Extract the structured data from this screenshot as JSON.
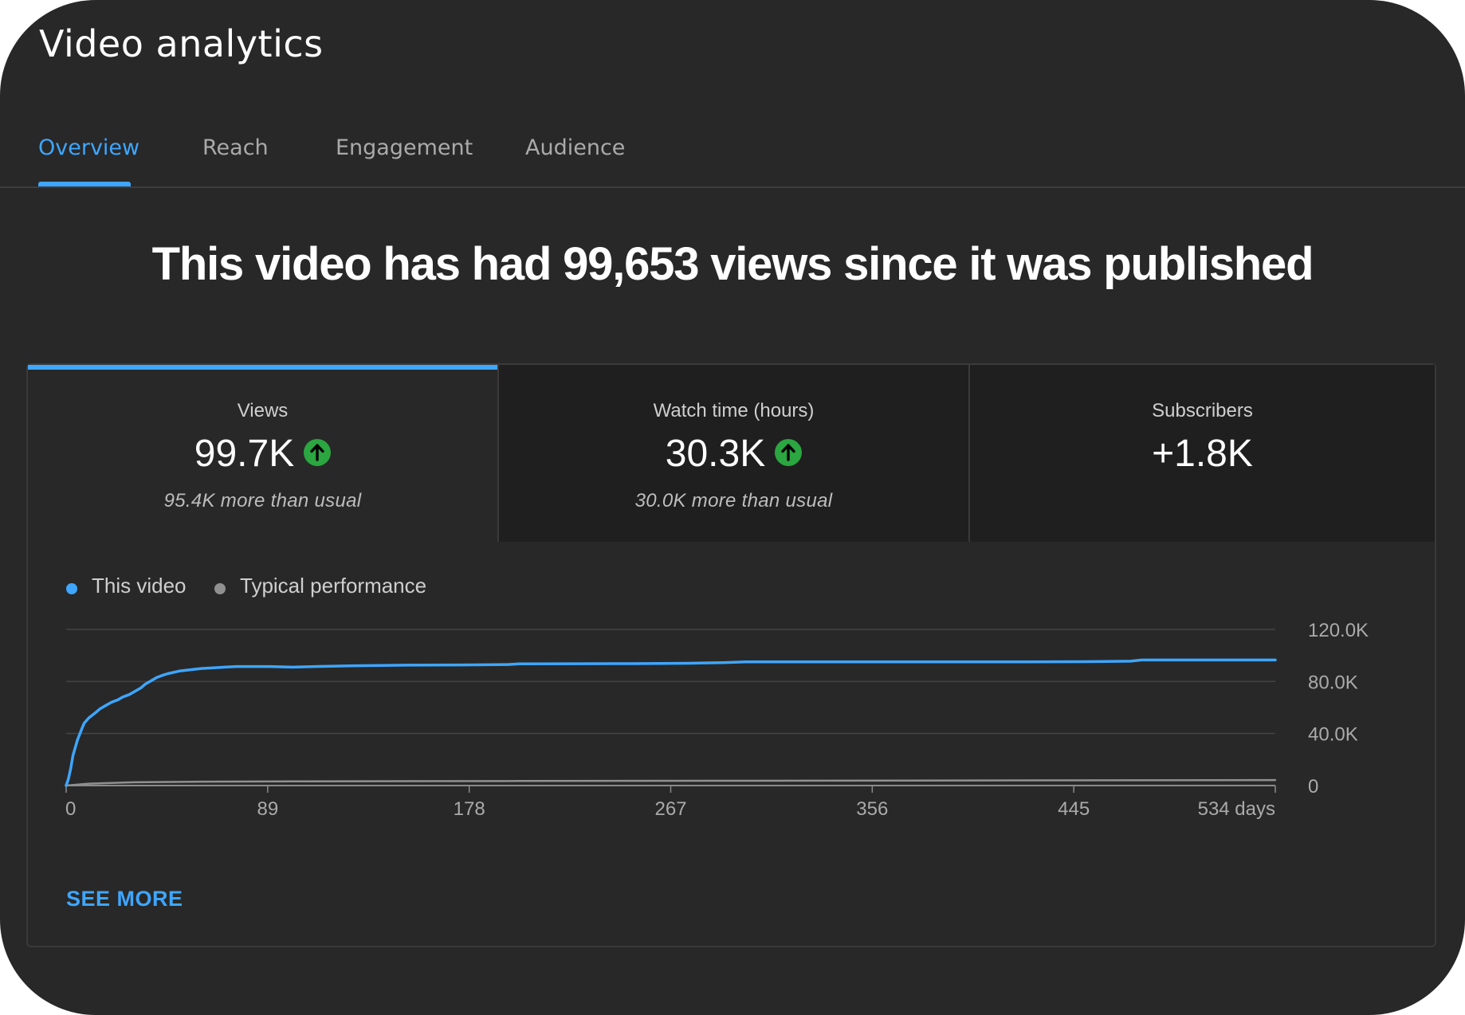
{
  "app": {
    "title": "Video analytics"
  },
  "tabs": [
    {
      "label": "Overview",
      "active": true
    },
    {
      "label": "Reach",
      "active": false
    },
    {
      "label": "Engagement",
      "active": false
    },
    {
      "label": "Audience",
      "active": false
    }
  ],
  "headline": "This video has had 99,653 views since it was published",
  "metrics": [
    {
      "label": "Views",
      "value": "99.7K",
      "trend": "up-arrow-icon",
      "subtext": "95.4K more than usual",
      "selected": true
    },
    {
      "label": "Watch time (hours)",
      "value": "30.3K",
      "trend": "up-arrow-icon",
      "subtext": "30.0K more than usual",
      "selected": false
    },
    {
      "label": "Subscribers",
      "value": "+1.8K",
      "trend": null,
      "subtext": "",
      "selected": false
    }
  ],
  "legend": [
    {
      "label": "This video",
      "color": "#3ea6ff"
    },
    {
      "label": "Typical performance",
      "color": "#909090"
    }
  ],
  "see_more": "SEE MORE",
  "colors": {
    "accent": "#3ea6ff",
    "positive": "#2ba640",
    "background": "#282828"
  },
  "chart_data": {
    "type": "line",
    "xlabel": "",
    "ylabel": "",
    "xlim": [
      0,
      534
    ],
    "ylim": [
      0,
      120000
    ],
    "x_ticks": [
      0,
      89,
      178,
      267,
      356,
      445,
      534
    ],
    "x_tick_labels": [
      "0",
      "89",
      "178",
      "267",
      "356",
      "445",
      "534 days"
    ],
    "y_ticks": [
      0,
      40000,
      80000,
      120000
    ],
    "y_tick_labels": [
      "0",
      "40.0K",
      "80.0K",
      "120.0K"
    ],
    "grid": true,
    "legend_position": "top-left",
    "series": [
      {
        "name": "This video",
        "color": "#3ea6ff",
        "x": [
          0,
          1,
          2,
          3,
          5,
          7,
          8,
          10,
          13,
          15,
          18,
          20,
          23,
          25,
          28,
          30,
          33,
          35,
          38,
          40,
          43,
          45,
          50,
          55,
          60,
          65,
          70,
          75,
          80,
          90,
          100,
          110,
          125,
          150,
          175,
          195,
          200,
          225,
          250,
          275,
          290,
          300,
          320,
          350,
          375,
          400,
          425,
          450,
          470,
          475,
          500,
          534
        ],
        "y": [
          0,
          5000,
          13000,
          23000,
          35000,
          44000,
          48000,
          52000,
          56000,
          59000,
          62000,
          64000,
          66000,
          68000,
          70000,
          72000,
          75000,
          78000,
          81000,
          83000,
          85000,
          86000,
          88000,
          89000,
          90000,
          90500,
          91000,
          91500,
          91500,
          91500,
          91000,
          91500,
          92000,
          92500,
          92700,
          93000,
          93500,
          93600,
          93700,
          94000,
          94500,
          95000,
          95000,
          95000,
          95000,
          95000,
          95000,
          95200,
          95600,
          96500,
          96500,
          96500
        ]
      },
      {
        "name": "Typical performance",
        "color": "#909090",
        "x": [
          0,
          10,
          30,
          60,
          100,
          200,
          300,
          400,
          534
        ],
        "y": [
          0,
          1500,
          2500,
          3000,
          3200,
          3500,
          3700,
          3900,
          4200
        ]
      }
    ]
  }
}
